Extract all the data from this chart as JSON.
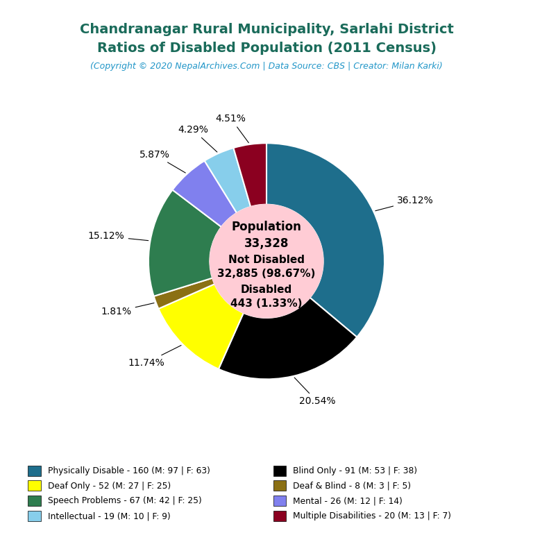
{
  "title_line1": "Chandranagar Rural Municipality, Sarlahi District",
  "title_line2": "Ratios of Disabled Population (2011 Census)",
  "subtitle": "(Copyright © 2020 NepalArchives.Com | Data Source: CBS | Creator: Milan Karki)",
  "title_color": "#1a6b5a",
  "subtitle_color": "#2196c8",
  "center_circle_color": "#ffccd5",
  "categories_left": [
    "Physically Disable - 160 (M: 97 | F: 63)",
    "Deaf Only - 52 (M: 27 | F: 25)",
    "Speech Problems - 67 (M: 42 | F: 25)",
    "Intellectual - 19 (M: 10 | F: 9)"
  ],
  "categories_right": [
    "Blind Only - 91 (M: 53 | F: 38)",
    "Deaf & Blind - 8 (M: 3 | F: 5)",
    "Mental - 26 (M: 12 | F: 14)",
    "Multiple Disabilities - 20 (M: 13 | F: 7)"
  ],
  "values": [
    160,
    91,
    52,
    8,
    67,
    26,
    19,
    20
  ],
  "percentages": [
    "36.12%",
    "20.54%",
    "11.74%",
    "1.81%",
    "15.12%",
    "5.87%",
    "4.29%",
    "4.51%"
  ],
  "colors": [
    "#1e6e8c",
    "#000000",
    "#ffff00",
    "#8b7014",
    "#2e7d4f",
    "#8080ee",
    "#87ceeb",
    "#8b0020"
  ],
  "colors_left": [
    "#1e6e8c",
    "#ffff00",
    "#2e7d4f",
    "#87ceeb"
  ],
  "colors_right": [
    "#000000",
    "#8b7014",
    "#8080ee",
    "#8b0020"
  ],
  "background_color": "#ffffff"
}
